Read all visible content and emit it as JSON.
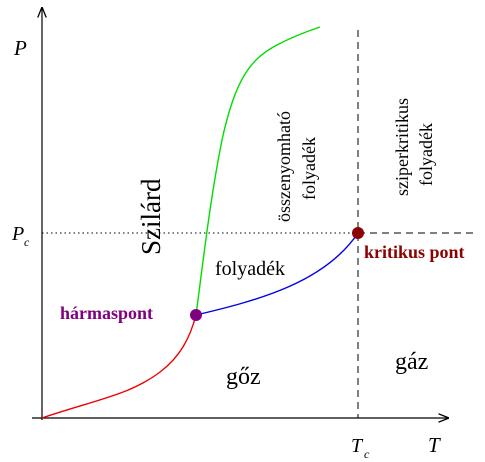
{
  "axes": {
    "x_label": "T",
    "y_label": "P",
    "tc_label": "T",
    "tc_sub": "c",
    "pc_label": "P",
    "pc_sub": "c"
  },
  "regions": {
    "solid": "Szilárd",
    "liquid": "folyadék",
    "compressible_line1": "összenyomható",
    "compressible_line2": "folyadék",
    "supercritical_line1": "sziperkritikus",
    "supercritical_line2": "folyadék",
    "vapor": "gőz",
    "gas": "gáz"
  },
  "points": {
    "triple": "hármaspont",
    "critical": "kritikus pont"
  },
  "colors": {
    "melting_curve": "#00dd00",
    "boiling_curve": "#0000ee",
    "sublimation_curve": "#ee0000",
    "triple_point": "#800080",
    "critical_point": "#8b0000"
  }
}
